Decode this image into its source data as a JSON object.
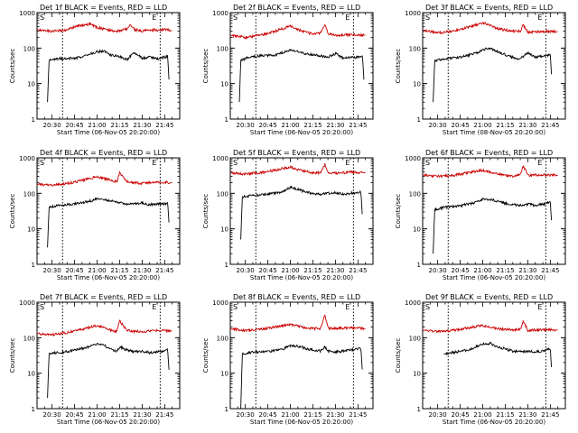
{
  "colors": {
    "events": "#000000",
    "lld": "#cc0000",
    "axis": "#000000"
  },
  "chart_data": [
    {
      "type": "line",
      "title": "Det 1f BLACK = Events, RED = LLD",
      "xlabel": "Start Time (06-Nov-05 20:20:00)",
      "ylabel": "Counts/sec",
      "yscale": "log",
      "ylim": [
        1,
        1000
      ],
      "xtick_labels": [
        "20:30",
        "20:45",
        "21:00",
        "21:15",
        "21:30",
        "21:45"
      ],
      "ytick_labels": [
        "1",
        "10",
        "100",
        "1000"
      ],
      "series": [
        {
          "name": "Events",
          "color": "black",
          "x": [
            "20:27",
            "20:28",
            "20:34",
            "20:45",
            "20:52",
            "21:00",
            "21:05",
            "21:07",
            "21:10",
            "21:14",
            "21:16",
            "21:20",
            "21:25",
            "21:30",
            "21:35",
            "21:40",
            "21:45",
            "21:47",
            "21:48"
          ],
          "y": [
            3,
            45,
            50,
            52,
            60,
            80,
            82,
            70,
            62,
            60,
            55,
            48,
            75,
            52,
            55,
            50,
            55,
            60,
            10
          ]
        },
        {
          "name": "LLD",
          "color": "red",
          "x": [
            "20:20",
            "20:30",
            "20:40",
            "20:45",
            "20:55",
            "21:00",
            "21:05",
            "21:10",
            "21:15",
            "21:20",
            "21:22",
            "21:25",
            "21:30",
            "21:35",
            "21:40",
            "21:45",
            "21:50"
          ],
          "y": [
            330,
            300,
            330,
            400,
            480,
            380,
            340,
            310,
            300,
            350,
            480,
            330,
            300,
            330,
            320,
            340,
            310
          ]
        }
      ],
      "marker_labels": [
        "S",
        "E"
      ],
      "vlines": [
        "20:37",
        "21:42"
      ]
    },
    {
      "type": "line",
      "title": "Det 2f BLACK = Events, RED = LLD",
      "xlabel": "Start Time (06-Nov-05 20:20:00)",
      "ylabel": "Counts/sec",
      "yscale": "log",
      "ylim": [
        1,
        1000
      ],
      "xtick_labels": [
        "20:30",
        "20:45",
        "21:00",
        "21:15",
        "21:30",
        "21:45"
      ],
      "ytick_labels": [
        "1",
        "10",
        "100",
        "1000"
      ],
      "series": [
        {
          "name": "Events",
          "color": "black",
          "x": [
            "20:26",
            "20:27",
            "20:32",
            "20:40",
            "20:50",
            "21:00",
            "21:05",
            "21:10",
            "21:15",
            "21:20",
            "21:25",
            "21:30",
            "21:35",
            "21:42",
            "21:45",
            "21:48",
            "21:49"
          ],
          "y": [
            3,
            45,
            55,
            60,
            65,
            85,
            80,
            70,
            65,
            60,
            55,
            70,
            52,
            55,
            55,
            60,
            12
          ]
        },
        {
          "name": "LLD",
          "color": "red",
          "x": [
            "20:20",
            "20:30",
            "20:40",
            "20:50",
            "21:00",
            "21:05",
            "21:10",
            "21:15",
            "21:20",
            "21:23",
            "21:25",
            "21:30",
            "21:40",
            "21:50"
          ],
          "y": [
            230,
            200,
            230,
            300,
            420,
            330,
            280,
            250,
            270,
            450,
            260,
            230,
            240,
            230
          ]
        }
      ],
      "marker_labels": [
        "S",
        "E"
      ],
      "vlines": [
        "20:37",
        "21:42"
      ]
    },
    {
      "type": "line",
      "title": "Det 3f BLACK = Events, RED = LLD",
      "xlabel": "Start Time (08-Nov-05 20:20:00)",
      "ylabel": "Counts/sec",
      "yscale": "log",
      "ylim": [
        1,
        1000
      ],
      "xtick_labels": [
        "20:30",
        "20:45",
        "21:00",
        "21:15",
        "21:30",
        "21:45"
      ],
      "ytick_labels": [
        "1",
        "10",
        "100",
        "1000"
      ],
      "series": [
        {
          "name": "Events",
          "color": "black",
          "x": [
            "20:27",
            "20:28",
            "20:34",
            "20:45",
            "20:55",
            "21:00",
            "21:05",
            "21:10",
            "21:15",
            "21:20",
            "21:25",
            "21:30",
            "21:35",
            "21:40",
            "21:45",
            "21:46"
          ],
          "y": [
            3,
            45,
            50,
            55,
            70,
            90,
            100,
            80,
            65,
            55,
            50,
            75,
            55,
            60,
            65,
            12
          ]
        },
        {
          "name": "LLD",
          "color": "red",
          "x": [
            "20:20",
            "20:30",
            "20:40",
            "20:50",
            "21:00",
            "21:05",
            "21:10",
            "21:15",
            "21:20",
            "21:25",
            "21:27",
            "21:30",
            "21:40",
            "21:50"
          ],
          "y": [
            320,
            270,
            300,
            380,
            520,
            420,
            360,
            320,
            300,
            300,
            450,
            280,
            300,
            290
          ]
        }
      ],
      "marker_labels": [
        "S",
        "E"
      ],
      "vlines": [
        "20:37",
        "21:42"
      ]
    },
    {
      "type": "line",
      "title": "Det 4f BLACK = Events, RED = LLD",
      "xlabel": "Start Time (06-Nov-05 20:20:00)",
      "ylabel": "Counts/sec",
      "yscale": "log",
      "ylim": [
        1,
        1000
      ],
      "xtick_labels": [
        "20:30",
        "20:45",
        "21:00",
        "21:15",
        "21:30",
        "21:45"
      ],
      "ytick_labels": [
        "1",
        "10",
        "100",
        "1000"
      ],
      "series": [
        {
          "name": "Events",
          "color": "black",
          "x": [
            "20:27",
            "20:28",
            "20:34",
            "20:45",
            "20:55",
            "21:00",
            "21:05",
            "21:10",
            "21:15",
            "21:20",
            "21:25",
            "21:30",
            "21:35",
            "21:40",
            "21:45",
            "21:47",
            "21:48"
          ],
          "y": [
            3,
            40,
            45,
            50,
            60,
            70,
            68,
            60,
            55,
            50,
            50,
            55,
            48,
            50,
            50,
            55,
            12
          ]
        },
        {
          "name": "LLD",
          "color": "red",
          "x": [
            "20:20",
            "20:30",
            "20:40",
            "20:50",
            "21:00",
            "21:05",
            "21:10",
            "21:13",
            "21:15",
            "21:20",
            "21:25",
            "21:30",
            "21:40",
            "21:50"
          ],
          "y": [
            180,
            170,
            190,
            230,
            300,
            260,
            230,
            210,
            380,
            220,
            200,
            190,
            210,
            200
          ]
        }
      ],
      "marker_labels": [
        "S",
        "E"
      ],
      "vlines": [
        "20:37",
        "21:42"
      ]
    },
    {
      "type": "line",
      "title": "Det 5f BLACK = Events, RED = LLD",
      "xlabel": "Start Time (06-Nov-05 20:20:00)",
      "ylabel": "Counts/sec",
      "yscale": "log",
      "ylim": [
        1,
        1000
      ],
      "xtick_labels": [
        "20:30",
        "20:45",
        "21:00",
        "21:15",
        "21:30",
        "21:45"
      ],
      "ytick_labels": [
        "1",
        "10",
        "100",
        "1000"
      ],
      "series": [
        {
          "name": "Events",
          "color": "black",
          "x": [
            "20:27",
            "20:28",
            "20:34",
            "20:45",
            "20:55",
            "21:00",
            "21:05",
            "21:10",
            "21:15",
            "21:20",
            "21:25",
            "21:30",
            "21:35",
            "21:40",
            "21:45",
            "21:47",
            "21:48"
          ],
          "y": [
            5,
            80,
            85,
            95,
            110,
            150,
            130,
            110,
            100,
            95,
            100,
            105,
            95,
            100,
            105,
            110,
            20
          ]
        },
        {
          "name": "LLD",
          "color": "red",
          "x": [
            "20:20",
            "20:30",
            "20:40",
            "20:50",
            "21:00",
            "21:05",
            "21:10",
            "21:15",
            "21:20",
            "21:23",
            "21:25",
            "21:30",
            "21:40",
            "21:50"
          ],
          "y": [
            380,
            350,
            380,
            450,
            550,
            470,
            420,
            380,
            380,
            650,
            380,
            370,
            400,
            380
          ]
        }
      ],
      "marker_labels": [
        "S",
        "E"
      ],
      "vlines": [
        "20:37",
        "21:42"
      ]
    },
    {
      "type": "line",
      "title": "Det 6f BLACK = Events, RED = LLD",
      "xlabel": "Start Time (06-Nov-05 20:20:00)",
      "ylabel": "Counts/sec",
      "yscale": "log",
      "ylim": [
        1,
        1000
      ],
      "xtick_labels": [
        "20:30",
        "20:45",
        "21:00",
        "21:15",
        "21:30",
        "21:45"
      ],
      "ytick_labels": [
        "1",
        "10",
        "100",
        "1000"
      ],
      "series": [
        {
          "name": "Events",
          "color": "black",
          "x": [
            "20:27",
            "20:28",
            "20:34",
            "20:45",
            "20:55",
            "21:00",
            "21:05",
            "21:10",
            "21:15",
            "21:20",
            "21:25",
            "21:30",
            "21:35",
            "21:40",
            "21:45",
            "21:46"
          ],
          "y": [
            2,
            35,
            40,
            45,
            55,
            70,
            68,
            60,
            52,
            48,
            45,
            50,
            45,
            50,
            55,
            12
          ]
        },
        {
          "name": "LLD",
          "color": "red",
          "x": [
            "20:20",
            "20:30",
            "20:40",
            "20:50",
            "21:00",
            "21:05",
            "21:10",
            "21:15",
            "21:20",
            "21:25",
            "21:27",
            "21:30",
            "21:40",
            "21:50"
          ],
          "y": [
            330,
            300,
            320,
            380,
            450,
            400,
            350,
            320,
            310,
            330,
            600,
            320,
            330,
            320
          ]
        }
      ],
      "marker_labels": [
        "S",
        "E"
      ],
      "vlines": [
        "20:37",
        "21:42"
      ]
    },
    {
      "type": "line",
      "title": "Det 7f BLACK = Events, RED = LLD",
      "xlabel": "Start Time (06-Nov-05 20:20:00)",
      "ylabel": "Counts/sec",
      "yscale": "log",
      "ylim": [
        1,
        1000
      ],
      "xtick_labels": [
        "20:30",
        "20:45",
        "21:00",
        "21:15",
        "21:30",
        "21:45"
      ],
      "ytick_labels": [
        "1",
        "10",
        "100",
        "1000"
      ],
      "series": [
        {
          "name": "Events",
          "color": "black",
          "x": [
            "20:27",
            "20:28",
            "20:34",
            "20:40",
            "20:50",
            "21:00",
            "21:05",
            "21:10",
            "21:13",
            "21:15",
            "21:20",
            "21:25",
            "21:30",
            "21:35",
            "21:40",
            "21:45",
            "21:47",
            "21:48"
          ],
          "y": [
            2,
            35,
            38,
            40,
            50,
            65,
            60,
            45,
            40,
            55,
            45,
            40,
            42,
            38,
            40,
            42,
            45,
            10
          ]
        },
        {
          "name": "LLD",
          "color": "red",
          "x": [
            "20:20",
            "20:30",
            "20:40",
            "20:50",
            "21:00",
            "21:05",
            "21:10",
            "21:13",
            "21:15",
            "21:20",
            "21:25",
            "21:30",
            "21:40",
            "21:50"
          ],
          "y": [
            130,
            120,
            140,
            170,
            220,
            190,
            160,
            150,
            300,
            160,
            150,
            150,
            160,
            155
          ]
        }
      ],
      "marker_labels": [
        "S",
        "E"
      ],
      "vlines": [
        "20:37",
        "21:42"
      ]
    },
    {
      "type": "line",
      "title": "Det 8f BLACK = Events, RED = LLD",
      "xlabel": "Start Time (06-Nov-05 20:20:00)",
      "ylabel": "Counts/sec",
      "yscale": "log",
      "ylim": [
        1,
        1000
      ],
      "xtick_labels": [
        "20:30",
        "20:45",
        "21:00",
        "21:15",
        "21:30",
        "21:45"
      ],
      "ytick_labels": [
        "1",
        "10",
        "100",
        "1000"
      ],
      "series": [
        {
          "name": "Events",
          "color": "black",
          "x": [
            "20:27",
            "20:28",
            "20:34",
            "20:45",
            "20:55",
            "21:00",
            "21:05",
            "21:10",
            "21:15",
            "21:20",
            "21:23",
            "21:25",
            "21:30",
            "21:35",
            "21:40",
            "21:45",
            "21:47",
            "21:48"
          ],
          "y": [
            1,
            35,
            38,
            40,
            48,
            60,
            58,
            50,
            45,
            42,
            55,
            42,
            40,
            42,
            45,
            48,
            50,
            10
          ]
        },
        {
          "name": "LLD",
          "color": "red",
          "x": [
            "20:20",
            "20:30",
            "20:40",
            "20:50",
            "21:00",
            "21:05",
            "21:10",
            "21:15",
            "21:20",
            "21:23",
            "21:25",
            "21:30",
            "21:40",
            "21:50"
          ],
          "y": [
            180,
            160,
            170,
            200,
            240,
            210,
            190,
            180,
            180,
            450,
            190,
            180,
            190,
            180
          ]
        }
      ],
      "marker_labels": [
        "S",
        "E"
      ],
      "vlines": [
        "20:37",
        "21:42"
      ]
    },
    {
      "type": "line",
      "title": "Det 9f BLACK = Events, RED = LLD",
      "xlabel": "Start Time (06-Nov-05 20:20:00)",
      "ylabel": "Counts/sec",
      "yscale": "log",
      "ylim": [
        1,
        1000
      ],
      "xtick_labels": [
        "20:30",
        "20:45",
        "21:00",
        "21:15",
        "21:30",
        "21:45"
      ],
      "ytick_labels": [
        "1",
        "10",
        "100",
        "1000"
      ],
      "series": [
        {
          "name": "Events",
          "color": "black",
          "x": [
            "20:34",
            "20:35",
            "20:40",
            "20:50",
            "21:00",
            "21:05",
            "21:10",
            "21:15",
            "21:20",
            "21:25",
            "21:30",
            "21:35",
            "21:40",
            "21:45",
            "21:46"
          ],
          "y": [
            35,
            35,
            38,
            45,
            65,
            70,
            55,
            48,
            42,
            40,
            42,
            40,
            42,
            48,
            10
          ]
        },
        {
          "name": "LLD",
          "color": "red",
          "x": [
            "20:20",
            "20:30",
            "20:40",
            "20:50",
            "21:00",
            "21:05",
            "21:10",
            "21:15",
            "21:20",
            "21:25",
            "21:27",
            "21:30",
            "21:40",
            "21:50"
          ],
          "y": [
            160,
            150,
            160,
            190,
            220,
            200,
            180,
            170,
            165,
            170,
            300,
            160,
            170,
            165
          ]
        }
      ],
      "marker_labels": [
        "S",
        "E"
      ],
      "vlines": [
        "20:37",
        "21:42"
      ]
    }
  ]
}
